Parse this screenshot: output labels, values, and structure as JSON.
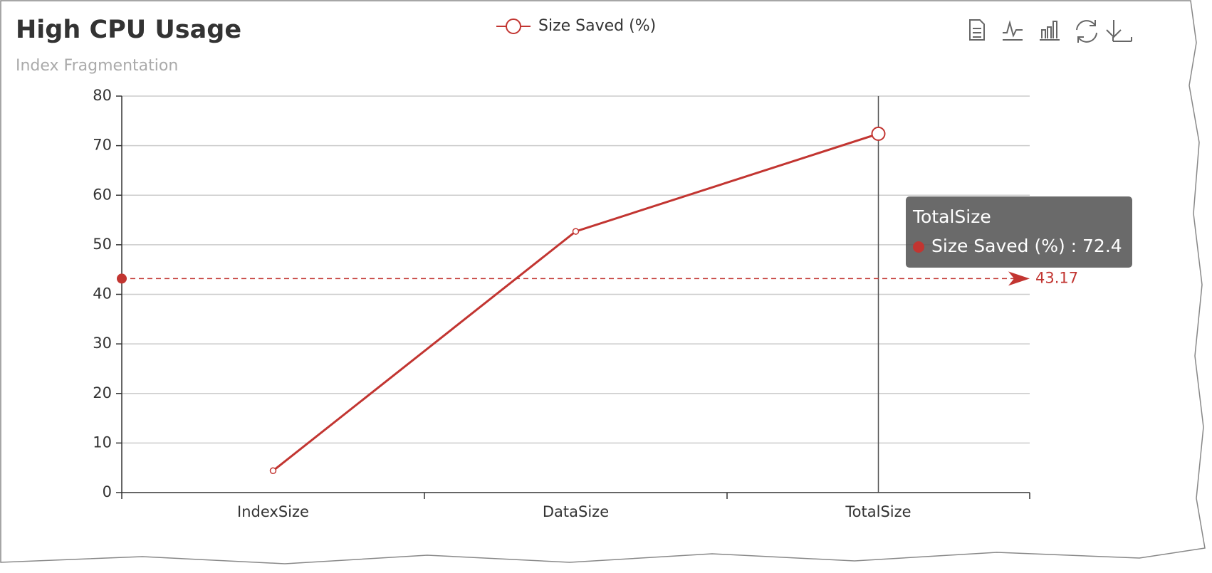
{
  "chart_data": {
    "type": "line",
    "title": "High CPU Usage",
    "subtitle": "Index Fragmentation",
    "categories": [
      "IndexSize",
      "DataSize",
      "TotalSize"
    ],
    "series": [
      {
        "name": "Size Saved (%)",
        "color": "#c23531",
        "values": [
          4.41,
          52.7,
          72.4
        ]
      }
    ],
    "mark_line": {
      "value": 43.17
    },
    "tooltip": {
      "title": "TotalSize",
      "text": "Size Saved (%) : 72.4"
    },
    "ylim": [
      0,
      80
    ],
    "yticks": [
      0,
      10,
      20,
      30,
      40,
      50,
      60,
      70,
      80
    ],
    "grid": true
  }
}
